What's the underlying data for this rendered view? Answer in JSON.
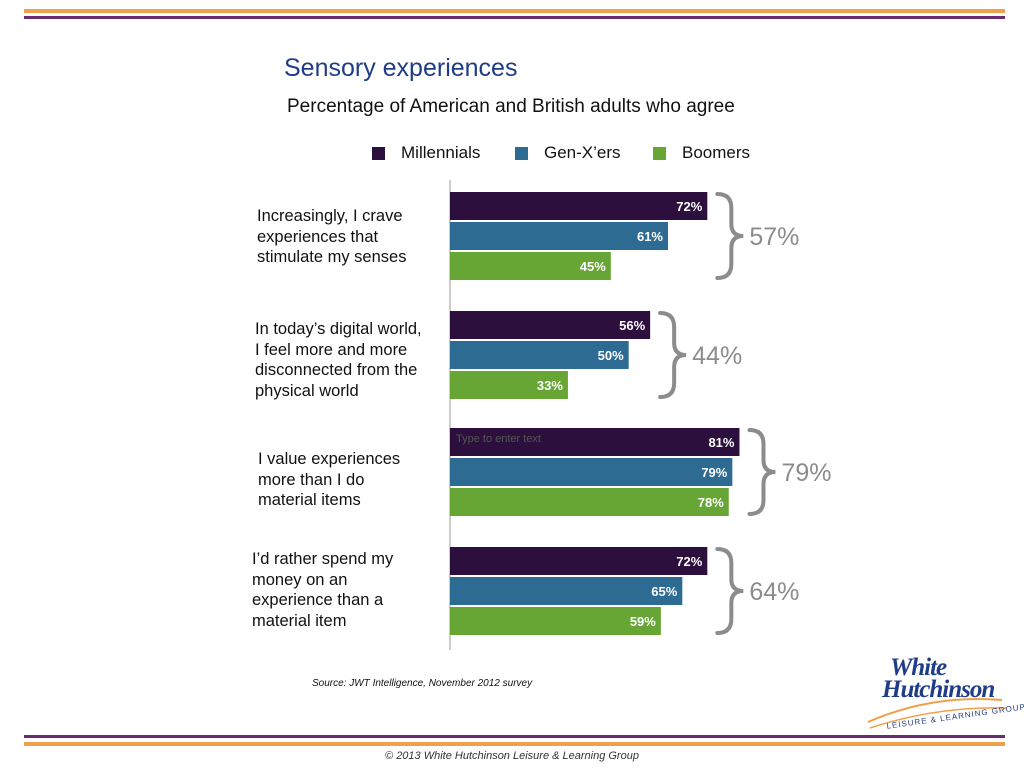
{
  "header": {
    "title": "Sensory experiences",
    "subtitle": "Percentage of American and British adults who agree"
  },
  "colors": {
    "rule_orange": "#f0a04b",
    "rule_purple": "#6a2c70",
    "millennials": "#2d0f3d",
    "genx": "#2e6b93",
    "boomers": "#67a634",
    "brace": "#8c8c8c",
    "total_text": "#8c8c8c"
  },
  "legend": [
    {
      "name": "Millennials",
      "color": "#2d0f3d"
    },
    {
      "name": "Gen-X’ers",
      "color": "#2e6b93"
    },
    {
      "name": "Boomers",
      "color": "#67a634"
    }
  ],
  "chart_data": {
    "type": "bar",
    "orientation": "horizontal",
    "grouped": true,
    "categories": [
      "Increasingly, I crave experiences that stimulate my senses",
      "In today’s digital world, I feel more and more disconnected from the physical world",
      "I value experiences more than I do material items",
      "I’d rather spend my money on an experience than a material item"
    ],
    "category_lines": [
      [
        "Increasingly, I crave",
        "experiences that",
        "stimulate my senses"
      ],
      [
        "In today’s digital world,",
        "I feel more and more",
        "disconnected from the",
        "physical world"
      ],
      [
        "I value experiences",
        "more than I do",
        "material items"
      ],
      [
        "I’d rather spend my",
        "money on an",
        "experience than a",
        "material item"
      ]
    ],
    "series": [
      {
        "name": "Millennials",
        "values": [
          72,
          56,
          81,
          72
        ]
      },
      {
        "name": "Gen-X’ers",
        "values": [
          61,
          50,
          79,
          65
        ]
      },
      {
        "name": "Boomers",
        "values": [
          45,
          33,
          78,
          59
        ]
      }
    ],
    "data_labels": [
      [
        "72%",
        "56%",
        "81%",
        "72%"
      ],
      [
        "61%",
        "50%",
        "79%",
        "65%"
      ],
      [
        "45%",
        "33%",
        "78%",
        "59%"
      ]
    ],
    "totals": [
      "57%",
      "44%",
      "79%",
      "64%"
    ],
    "xlim": [
      0,
      100
    ],
    "grid": false,
    "legend_position": "top"
  },
  "placeholder_text": "Type to enter text",
  "source": "Source: JWT Intelligence, November 2012 survey",
  "footer": "© 2013 White Hutchinson Leisure & Learning Group",
  "logo": {
    "line1": "White",
    "line2": "Hutchinson",
    "tagline": "LEISURE & LEARNING GROUP"
  }
}
